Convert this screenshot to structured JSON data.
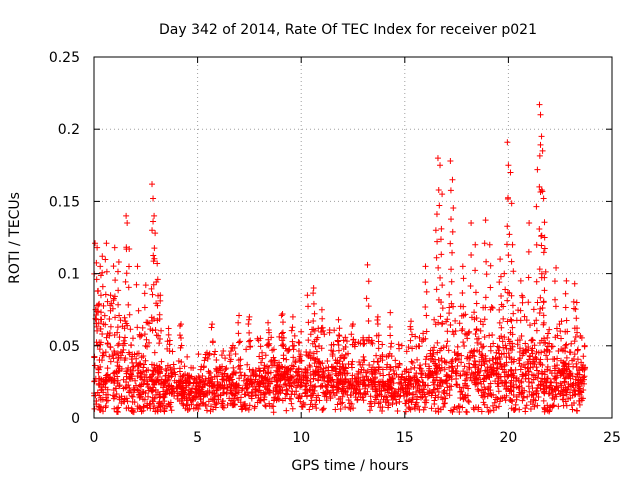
{
  "chart_data": {
    "type": "scatter",
    "title": "Day 342 of 2014, Rate Of TEC Index for receiver p021",
    "xlabel": "GPS time / hours",
    "ylabel": "ROTI / TECUs",
    "xlim": [
      0,
      25
    ],
    "ylim": [
      0,
      0.25
    ],
    "xticks": [
      0,
      5,
      10,
      15,
      20,
      25
    ],
    "yticks": [
      0,
      0.05,
      0.1,
      0.15,
      0.2,
      0.25
    ],
    "xtick_labels": [
      "0",
      "5",
      "10",
      "15",
      "20",
      "25"
    ],
    "ytick_labels": [
      "0",
      "0.05",
      "0.1",
      "0.15",
      "0.2",
      "0.25"
    ],
    "grid": true,
    "marker": "+",
    "marker_color": "#ff0000",
    "series": [
      {
        "name": "ROTI",
        "baseline_envelope": [
          {
            "x": 0.0,
            "median": 0.025,
            "spread": 0.02
          },
          {
            "x": 1.0,
            "median": 0.025,
            "spread": 0.025
          },
          {
            "x": 2.0,
            "median": 0.024,
            "spread": 0.022
          },
          {
            "x": 3.0,
            "median": 0.022,
            "spread": 0.018
          },
          {
            "x": 4.0,
            "median": 0.019,
            "spread": 0.012
          },
          {
            "x": 5.0,
            "median": 0.018,
            "spread": 0.011
          },
          {
            "x": 6.0,
            "median": 0.019,
            "spread": 0.012
          },
          {
            "x": 7.0,
            "median": 0.021,
            "spread": 0.013
          },
          {
            "x": 8.0,
            "median": 0.022,
            "spread": 0.014
          },
          {
            "x": 9.0,
            "median": 0.024,
            "spread": 0.015
          },
          {
            "x": 10.0,
            "median": 0.026,
            "spread": 0.016
          },
          {
            "x": 11.0,
            "median": 0.025,
            "spread": 0.016
          },
          {
            "x": 12.0,
            "median": 0.024,
            "spread": 0.015
          },
          {
            "x": 13.0,
            "median": 0.023,
            "spread": 0.014
          },
          {
            "x": 14.0,
            "median": 0.022,
            "spread": 0.014
          },
          {
            "x": 15.0,
            "median": 0.02,
            "spread": 0.013
          },
          {
            "x": 16.0,
            "median": 0.022,
            "spread": 0.017
          },
          {
            "x": 17.0,
            "median": 0.028,
            "spread": 0.025
          },
          {
            "x": 18.0,
            "median": 0.027,
            "spread": 0.022
          },
          {
            "x": 19.0,
            "median": 0.027,
            "spread": 0.022
          },
          {
            "x": 20.0,
            "median": 0.028,
            "spread": 0.024
          },
          {
            "x": 21.0,
            "median": 0.028,
            "spread": 0.024
          },
          {
            "x": 22.0,
            "median": 0.026,
            "spread": 0.02
          },
          {
            "x": 23.0,
            "median": 0.024,
            "spread": 0.017
          },
          {
            "x": 23.7,
            "median": 0.023,
            "spread": 0.015
          }
        ],
        "spikes": [
          {
            "x": 0.05,
            "y": 0.121
          },
          {
            "x": 0.15,
            "y": 0.118
          },
          {
            "x": 0.2,
            "y": 0.088
          },
          {
            "x": 0.3,
            "y": 0.105
          },
          {
            "x": 0.4,
            "y": 0.112
          },
          {
            "x": 0.6,
            "y": 0.121
          },
          {
            "x": 0.8,
            "y": 0.085
          },
          {
            "x": 1.0,
            "y": 0.118
          },
          {
            "x": 1.2,
            "y": 0.108
          },
          {
            "x": 1.55,
            "y": 0.14
          },
          {
            "x": 1.6,
            "y": 0.135
          },
          {
            "x": 1.7,
            "y": 0.117
          },
          {
            "x": 2.1,
            "y": 0.105
          },
          {
            "x": 2.5,
            "y": 0.092
          },
          {
            "x": 2.8,
            "y": 0.162
          },
          {
            "x": 2.85,
            "y": 0.152
          },
          {
            "x": 2.9,
            "y": 0.14
          },
          {
            "x": 2.95,
            "y": 0.128
          },
          {
            "x": 3.05,
            "y": 0.107
          },
          {
            "x": 3.2,
            "y": 0.085
          },
          {
            "x": 3.6,
            "y": 0.062
          },
          {
            "x": 4.2,
            "y": 0.065
          },
          {
            "x": 5.7,
            "y": 0.065
          },
          {
            "x": 7.0,
            "y": 0.071
          },
          {
            "x": 7.5,
            "y": 0.07
          },
          {
            "x": 8.4,
            "y": 0.066
          },
          {
            "x": 9.1,
            "y": 0.072
          },
          {
            "x": 9.6,
            "y": 0.07
          },
          {
            "x": 10.3,
            "y": 0.085
          },
          {
            "x": 10.6,
            "y": 0.09
          },
          {
            "x": 11.0,
            "y": 0.075
          },
          {
            "x": 11.8,
            "y": 0.068
          },
          {
            "x": 12.5,
            "y": 0.065
          },
          {
            "x": 13.2,
            "y": 0.106
          },
          {
            "x": 13.7,
            "y": 0.07
          },
          {
            "x": 14.3,
            "y": 0.073
          },
          {
            "x": 15.3,
            "y": 0.067
          },
          {
            "x": 16.0,
            "y": 0.105
          },
          {
            "x": 16.5,
            "y": 0.13
          },
          {
            "x": 16.6,
            "y": 0.18
          },
          {
            "x": 16.7,
            "y": 0.175
          },
          {
            "x": 16.8,
            "y": 0.155
          },
          {
            "x": 17.2,
            "y": 0.178
          },
          {
            "x": 17.3,
            "y": 0.165
          },
          {
            "x": 17.8,
            "y": 0.105
          },
          {
            "x": 18.2,
            "y": 0.135
          },
          {
            "x": 18.4,
            "y": 0.12
          },
          {
            "x": 18.9,
            "y": 0.137
          },
          {
            "x": 19.1,
            "y": 0.12
          },
          {
            "x": 19.6,
            "y": 0.11
          },
          {
            "x": 19.8,
            "y": 0.1
          },
          {
            "x": 19.95,
            "y": 0.191
          },
          {
            "x": 20.0,
            "y": 0.175
          },
          {
            "x": 20.1,
            "y": 0.17
          },
          {
            "x": 20.2,
            "y": 0.12
          },
          {
            "x": 20.6,
            "y": 0.095
          },
          {
            "x": 21.0,
            "y": 0.135
          },
          {
            "x": 21.4,
            "y": 0.172
          },
          {
            "x": 21.5,
            "y": 0.217
          },
          {
            "x": 21.55,
            "y": 0.21
          },
          {
            "x": 21.6,
            "y": 0.195
          },
          {
            "x": 21.65,
            "y": 0.185
          },
          {
            "x": 21.7,
            "y": 0.152
          },
          {
            "x": 21.75,
            "y": 0.125
          },
          {
            "x": 22.3,
            "y": 0.104
          },
          {
            "x": 22.8,
            "y": 0.095
          },
          {
            "x": 23.2,
            "y": 0.093
          },
          {
            "x": 23.3,
            "y": 0.08
          }
        ]
      }
    ]
  }
}
